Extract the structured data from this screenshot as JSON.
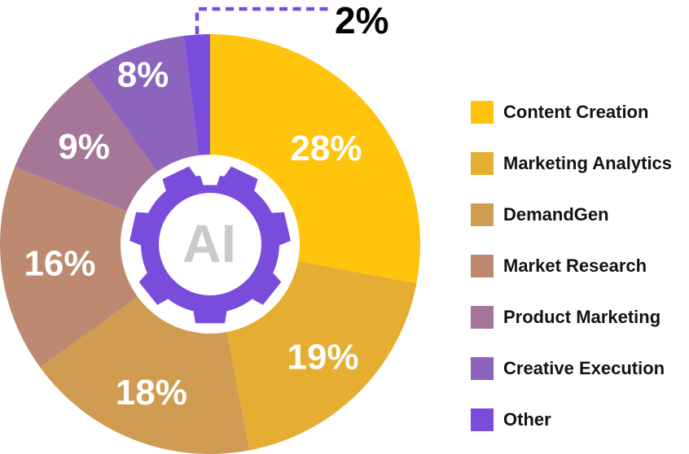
{
  "chart_data": {
    "type": "pie",
    "subtype": "donut",
    "direction": "clockwise",
    "start_angle_deg": 0,
    "legend_position": "right",
    "center_icon": "gear",
    "center_text": "AI",
    "center_icon_color": "#7A4CDC",
    "center_text_color": "#CACACA",
    "slice_label_color": "#FFFFFF",
    "background_color": "#FFFFFF",
    "categories": [
      "Content Creation",
      "Marketing Analytics",
      "DemandGen",
      "Market Research",
      "Product Marketing",
      "Creative Execution",
      "Other"
    ],
    "values": [
      28,
      19,
      18,
      16,
      9,
      8,
      2
    ],
    "series": [
      {
        "name": "Content Creation",
        "value": 28,
        "label": "28%",
        "color": "#FFC50C"
      },
      {
        "name": "Marketing Analytics",
        "value": 19,
        "label": "19%",
        "color": "#E5AE32"
      },
      {
        "name": "DemandGen",
        "value": 18,
        "label": "18%",
        "color": "#D09C52"
      },
      {
        "name": "Market Research",
        "value": 16,
        "label": "16%",
        "color": "#BD8A71"
      },
      {
        "name": "Product Marketing",
        "value": 9,
        "label": "9%",
        "color": "#A67698"
      },
      {
        "name": "Creative Execution",
        "value": 8,
        "label": "8%",
        "color": "#8C64BD"
      },
      {
        "name": "Other",
        "value": 2,
        "label": "2%",
        "color": "#7A4CDC",
        "callout": true
      }
    ],
    "callout": {
      "series": "Other",
      "label": "2%",
      "text_color": "#000000",
      "line_color": "#7A4CDC",
      "line_style": "dashed"
    }
  }
}
